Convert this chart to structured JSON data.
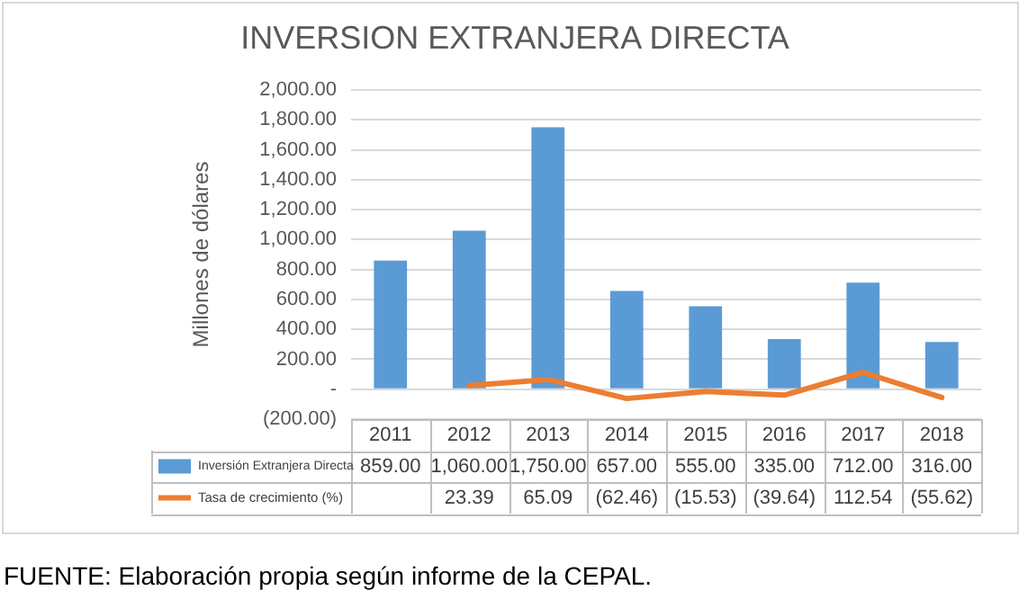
{
  "chart_data": {
    "type": "bar",
    "title": "INVERSION EXTRANJERA DIRECTA",
    "ylabel": "Millones de dólares",
    "categories": [
      "2011",
      "2012",
      "2013",
      "2014",
      "2015",
      "2016",
      "2017",
      "2018"
    ],
    "series": [
      {
        "name": "Inversión Extranjera Directa",
        "color": "#5b9bd5",
        "values": [
          859,
          1060,
          1750,
          657,
          555,
          335,
          712,
          316
        ],
        "value_labels": [
          "859.00",
          "1,060.00",
          "1,750.00",
          "657.00",
          "555.00",
          "335.00",
          "712.00",
          "316.00"
        ]
      },
      {
        "name": "Tasa de crecimiento (%)",
        "type": "line",
        "color": "#ed7d31",
        "values": [
          null,
          23.39,
          65.09,
          -62.46,
          -15.53,
          -39.64,
          112.54,
          -55.62
        ],
        "value_labels": [
          null,
          "23.39",
          "65.09",
          "(62.46)",
          "(15.53)",
          "(39.64)",
          "112.54",
          "(55.62)"
        ]
      }
    ],
    "ylim": [
      -200,
      2000
    ],
    "yticks": [
      {
        "value": -200,
        "label": "(200.00)"
      },
      {
        "value": 0,
        "label": "-"
      },
      {
        "value": 200,
        "label": "200.00"
      },
      {
        "value": 400,
        "label": "400.00"
      },
      {
        "value": 600,
        "label": "600.00"
      },
      {
        "value": 800,
        "label": "800.00"
      },
      {
        "value": 1000,
        "label": "1,000.00"
      },
      {
        "value": 1200,
        "label": "1,200.00"
      },
      {
        "value": 1400,
        "label": "1,400.00"
      },
      {
        "value": 1600,
        "label": "1,600.00"
      },
      {
        "value": 1800,
        "label": "1,800.00"
      },
      {
        "value": 2000,
        "label": "2,000.00"
      }
    ],
    "grid": "y",
    "legend": "bottom",
    "marker": "none",
    "line_style": "solid",
    "annotations": [
      "FUENTE: Elaboración propia según informe de la CEPAL."
    ]
  }
}
